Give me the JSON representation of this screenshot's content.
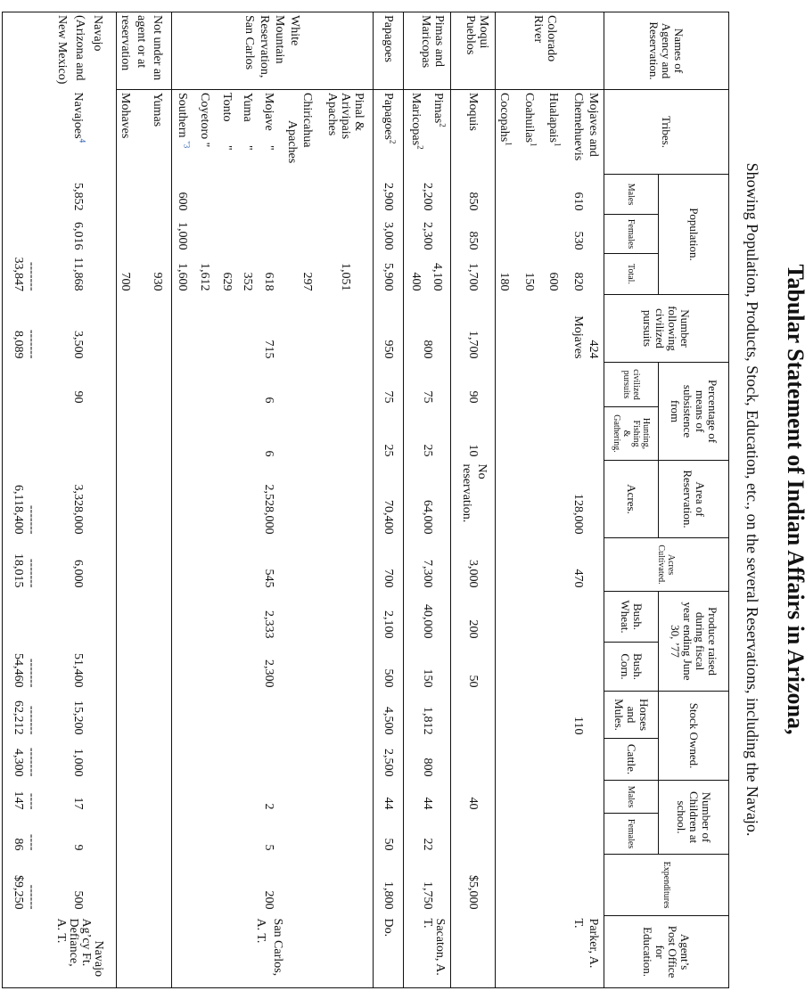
{
  "title": "Tabular Statement of Indian Affairs in Arizona,",
  "subtitle": "Showing Population, Products, Stock, Education, etc., on the several Reservations, including the Navajo.",
  "note_color": "#2a5db0",
  "header": {
    "agency": "Names of\nAgency and\nReservation.",
    "tribes": "Tribes.",
    "population": "Population.",
    "males": "Males",
    "females": "Females",
    "total": "Total.",
    "number_following": "Number\nfollowing\ncivilized\npursuits",
    "percentage": "Percentage of\nmeans of\nsubsistence\nfrom",
    "civilized": "civilized\npursuits",
    "hunting": "Hunting,\nFishing\n&\nGathering.",
    "area": "Area of\nReservation.",
    "acres": "Acres.",
    "cultivated": "Acres\nCultivated.",
    "produce": "Produce raised\nduring fiscal\nyear ending June\n30, ’77",
    "wheat": "Bush.\nWheat.",
    "corn": "Bush.\nCorn.",
    "stock": "Stock Owned.",
    "horses": "Horses\nand\nMules.",
    "cattle": "Cattle.",
    "children": "Number of\nChildren at\nschool.",
    "child_males": "Males",
    "child_females": "Females",
    "expenditures": "Expenditures",
    "agent": "Agent’s\nPost Office\nfor\nEducation."
  },
  "body": {
    "rows": [
      {
        "cells": [
          [
            "Colorado",
            "River"
          ],
          [
            "Mojaves and",
            "Chemehuevis",
            {
              "t": "Hualapais",
              "sup": "1"
            },
            {
              "t": "Coahuilas",
              "sup": "1"
            },
            {
              "t": "Cocopahs",
              "sup": "1"
            }
          ],
          [
            "",
            "610"
          ],
          [
            "",
            "530"
          ],
          [
            "",
            "820",
            "600",
            "150",
            "180"
          ],
          [
            "424",
            "Mojaves"
          ],
          [],
          [],
          [
            "",
            "128,000"
          ],
          [
            "",
            "470"
          ],
          [],
          [],
          [
            "",
            "110"
          ],
          [],
          [],
          [],
          [],
          [
            "Parker, A.",
            "T."
          ]
        ]
      },
      {
        "cells": [
          [
            "Moqui",
            "Pueblos"
          ],
          [
            "Moquis"
          ],
          [
            "850"
          ],
          [
            "850"
          ],
          [
            "1,700"
          ],
          [
            "1,700"
          ],
          [
            "90"
          ],
          [
            "10"
          ],
          [
            "No",
            "reservation."
          ],
          [
            "3,000"
          ],
          [
            "200"
          ],
          [
            "50"
          ],
          [],
          [],
          [
            "40"
          ],
          [],
          [
            "$5,000"
          ],
          []
        ]
      },
      {
        "cells": [
          [
            "Pimas and",
            "Maricopas"
          ],
          [
            {
              "t": "Pimas",
              "sup": "2"
            },
            {
              "t": "Maricopas",
              "sup": "2"
            }
          ],
          [
            "2,200"
          ],
          [
            "2,300"
          ],
          [
            "4,100",
            "400"
          ],
          [
            "800"
          ],
          [
            "75"
          ],
          [
            "25"
          ],
          [
            "64,000"
          ],
          [
            "7,300"
          ],
          [
            "40,000"
          ],
          [
            "150"
          ],
          [
            "1,812"
          ],
          [
            "800"
          ],
          [
            "44"
          ],
          [
            "22"
          ],
          [
            "1,750"
          ],
          [
            "Sacaton, A.",
            "T."
          ]
        ]
      },
      {
        "cells": [
          [
            "Papagoes"
          ],
          [
            {
              "t": "Papagoes",
              "sup": "2"
            }
          ],
          [
            "2,900"
          ],
          [
            "3,000"
          ],
          [
            "5,900"
          ],
          [
            "950"
          ],
          [
            "75"
          ],
          [
            "25"
          ],
          [
            "70,400"
          ],
          [
            "700"
          ],
          [
            "2,100"
          ],
          [
            "500"
          ],
          [
            "4,500"
          ],
          [
            "2,500"
          ],
          [
            "44"
          ],
          [
            "50"
          ],
          [
            "1,800"
          ],
          [
            "Do."
          ]
        ]
      },
      {
        "cells": [
          [
            "White",
            "Mountain",
            "Reservation,",
            "San Carlos"
          ],
          [
            "Pinal &",
            "Arivipais",
            "Apaches",
            "Chiricahua",
            "Apaches",
            {
              "t": "Mojave",
              "ditto": "\""
            },
            {
              "t": "Yuma",
              "ditto": "\""
            },
            {
              "t": "Tonto",
              "ditto": "\""
            },
            {
              "t": "Coyetoro \""
            },
            {
              "t": "Southern ",
              "sup": "\"3",
              "note": true
            }
          ],
          [
            "",
            "",
            "",
            "",
            "",
            "",
            "",
            "",
            "",
            "600"
          ],
          [
            "",
            "",
            "",
            "",
            "",
            "",
            "",
            "",
            "",
            "1,000"
          ],
          [
            "",
            "1,051",
            "",
            "297",
            "",
            "618",
            "352",
            "629",
            "1,612",
            "1,600"
          ],
          [
            "",
            "",
            "",
            "",
            "",
            "715"
          ],
          [
            "",
            "",
            "",
            "",
            "",
            "6"
          ],
          [
            "",
            "",
            "",
            "",
            "",
            "6"
          ],
          [
            "",
            "",
            "",
            "",
            "",
            "2,528,000"
          ],
          [
            "",
            "",
            "",
            "",
            "",
            "545"
          ],
          [
            "",
            "",
            "",
            "",
            "",
            "2,333"
          ],
          [
            "",
            "",
            "",
            "",
            "",
            "2,300"
          ],
          [],
          [],
          [
            "",
            "",
            "",
            "",
            "",
            "2"
          ],
          [
            "",
            "",
            "",
            "",
            "",
            "5"
          ],
          [
            "",
            "",
            "",
            "",
            "",
            "200"
          ],
          [
            "San Carlos,",
            "A. T."
          ]
        ]
      },
      {
        "cells": [
          [
            "Not under an",
            "agent or at",
            "reservation"
          ],
          [
            "Yumas",
            "",
            "Mohaves"
          ],
          [],
          [],
          [
            "930",
            "",
            "700"
          ],
          [],
          [],
          [],
          [],
          [],
          [],
          [],
          [],
          [],
          [],
          [],
          [],
          []
        ]
      },
      {
        "cells": [
          [
            "Navajo",
            "(Arizona and",
            "New Mexico)"
          ],
          [
            "",
            {
              "t": "Navajoes",
              "sup": "4",
              "note": true
            }
          ],
          [
            "",
            "5,852"
          ],
          [
            "",
            "6,016"
          ],
          [
            "",
            "11,868",
            "-------",
            "33,847"
          ],
          [
            "",
            "3,500",
            "-------",
            "8,089"
          ],
          [
            "",
            "90"
          ],
          [],
          [
            "",
            "3,328,000",
            "-------",
            "6,118,400"
          ],
          [
            "",
            "6,000",
            "-------",
            "18,015"
          ],
          [],
          [
            "",
            "51,400",
            "-------",
            "54,460"
          ],
          [
            "",
            "15,200",
            "-------",
            "62,212"
          ],
          [
            "",
            "1,000",
            "-------",
            "4,300"
          ],
          [
            "",
            "17",
            "----",
            "147"
          ],
          [
            "",
            "9",
            "----",
            "86"
          ],
          [
            "",
            "500",
            "------",
            "$9,250"
          ],
          [
            "Navajo",
            "Ag’cy Ft.",
            "Defiance,",
            "A. T."
          ]
        ]
      }
    ]
  }
}
